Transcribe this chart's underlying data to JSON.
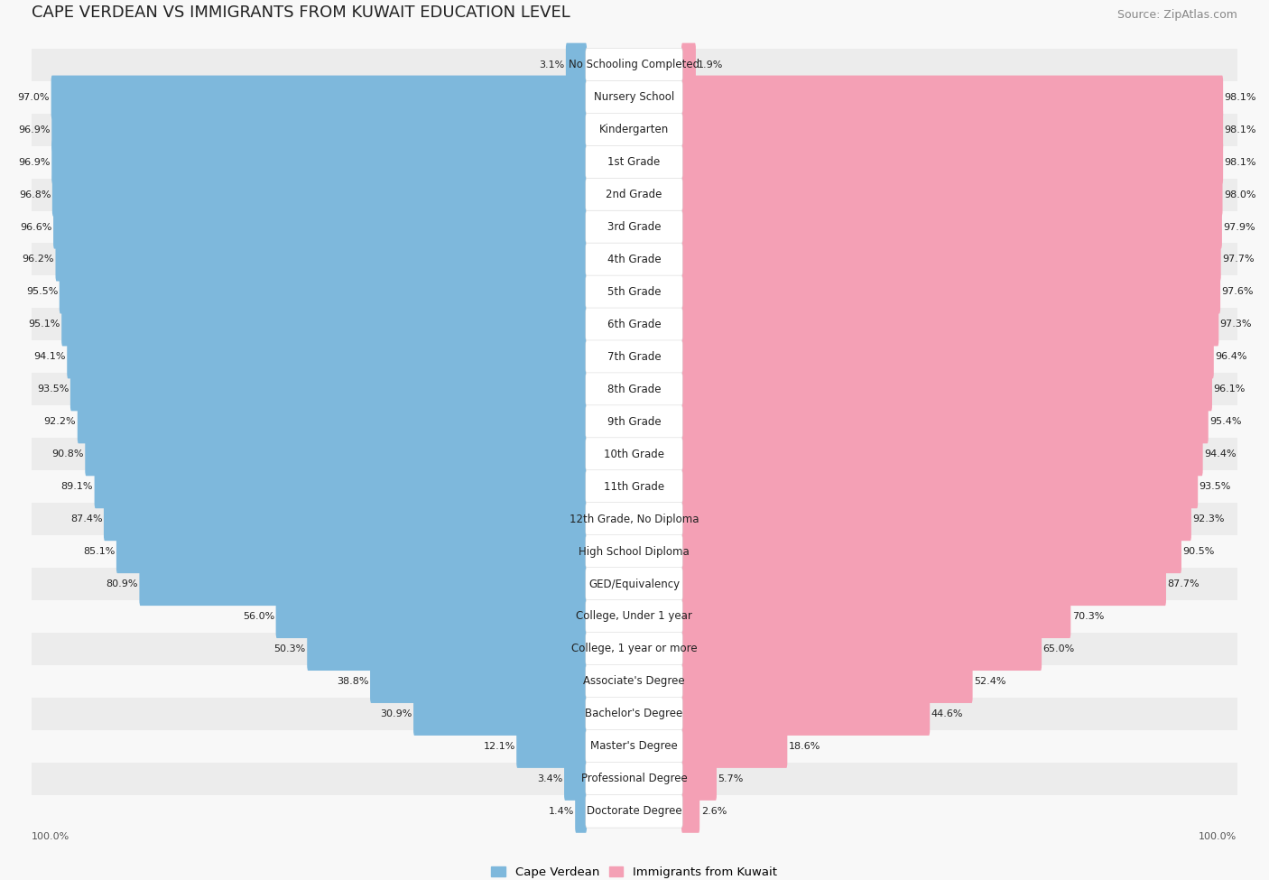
{
  "title": "CAPE VERDEAN VS IMMIGRANTS FROM KUWAIT EDUCATION LEVEL",
  "source": "Source: ZipAtlas.com",
  "categories": [
    "No Schooling Completed",
    "Nursery School",
    "Kindergarten",
    "1st Grade",
    "2nd Grade",
    "3rd Grade",
    "4th Grade",
    "5th Grade",
    "6th Grade",
    "7th Grade",
    "8th Grade",
    "9th Grade",
    "10th Grade",
    "11th Grade",
    "12th Grade, No Diploma",
    "High School Diploma",
    "GED/Equivalency",
    "College, Under 1 year",
    "College, 1 year or more",
    "Associate's Degree",
    "Bachelor's Degree",
    "Master's Degree",
    "Professional Degree",
    "Doctorate Degree"
  ],
  "cape_verdean": [
    3.1,
    97.0,
    96.9,
    96.9,
    96.8,
    96.6,
    96.2,
    95.5,
    95.1,
    94.1,
    93.5,
    92.2,
    90.8,
    89.1,
    87.4,
    85.1,
    80.9,
    56.0,
    50.3,
    38.8,
    30.9,
    12.1,
    3.4,
    1.4
  ],
  "kuwait": [
    1.9,
    98.1,
    98.1,
    98.1,
    98.0,
    97.9,
    97.7,
    97.6,
    97.3,
    96.4,
    96.1,
    95.4,
    94.4,
    93.5,
    92.3,
    90.5,
    87.7,
    70.3,
    65.0,
    52.4,
    44.6,
    18.6,
    5.7,
    2.6
  ],
  "cv_color": "#7eb8dc",
  "kw_color": "#f4a0b5",
  "row_even_color": "#ececec",
  "row_odd_color": "#f8f8f8",
  "bg_color": "#f8f8f8",
  "label_box_color": "#ffffff",
  "legend_cv": "Cape Verdean",
  "legend_kw": "Immigrants from Kuwait",
  "title_fontsize": 13,
  "source_fontsize": 9,
  "label_fontsize": 8.5,
  "value_fontsize": 8.0
}
